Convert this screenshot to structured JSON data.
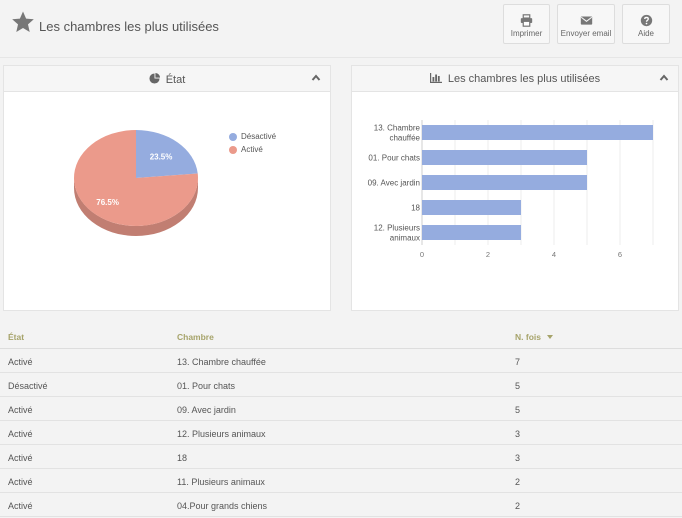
{
  "header": {
    "title": "Les chambres les plus utilisées",
    "buttons": [
      {
        "label": "Imprimer",
        "icon": "print-icon"
      },
      {
        "label": "Envoyer email",
        "icon": "email-icon"
      },
      {
        "label": "Aide",
        "icon": "help-icon"
      }
    ]
  },
  "pie_panel": {
    "title": "État",
    "legend": [
      "Désactivé",
      "Activé"
    ]
  },
  "bar_panel": {
    "title": "Les chambres les plus utilisées"
  },
  "colors": {
    "blue": "#95acdf",
    "salmon": "#eb9a8b",
    "header_gold": "#a6a36a"
  },
  "chart_data": [
    {
      "type": "pie",
      "title": "État",
      "labels": [
        "Désactivé",
        "Activé"
      ],
      "values": [
        23.5,
        76.5
      ],
      "value_labels": [
        "23.5%",
        "76.5%"
      ],
      "colors": [
        "#95acdf",
        "#eb9a8b"
      ],
      "legend": "top-right"
    },
    {
      "type": "bar",
      "orientation": "horizontal",
      "title": "Les chambres les plus utilisées",
      "categories": [
        "13. Chambre chauffée",
        "01. Pour chats",
        "09. Avec jardin",
        "18",
        "12. Plusieurs animaux"
      ],
      "values": [
        7,
        5,
        5,
        3,
        3
      ],
      "xlim": [
        0,
        7
      ],
      "xticks": [
        "0",
        "2",
        "4",
        "6"
      ]
    }
  ],
  "table": {
    "columns": [
      "État",
      "Chambre",
      "N. fois"
    ],
    "rows": [
      [
        "Activé",
        "13. Chambre chauffée",
        "7"
      ],
      [
        "Désactivé",
        "01. Pour chats",
        "5"
      ],
      [
        "Activé",
        "09. Avec jardin",
        "5"
      ],
      [
        "Activé",
        "12. Plusieurs animaux",
        "3"
      ],
      [
        "Activé",
        "18",
        "3"
      ],
      [
        "Activé",
        "11. Plusieurs animaux",
        "2"
      ],
      [
        "Activé",
        "04.Pour grands chiens",
        "2"
      ]
    ]
  }
}
